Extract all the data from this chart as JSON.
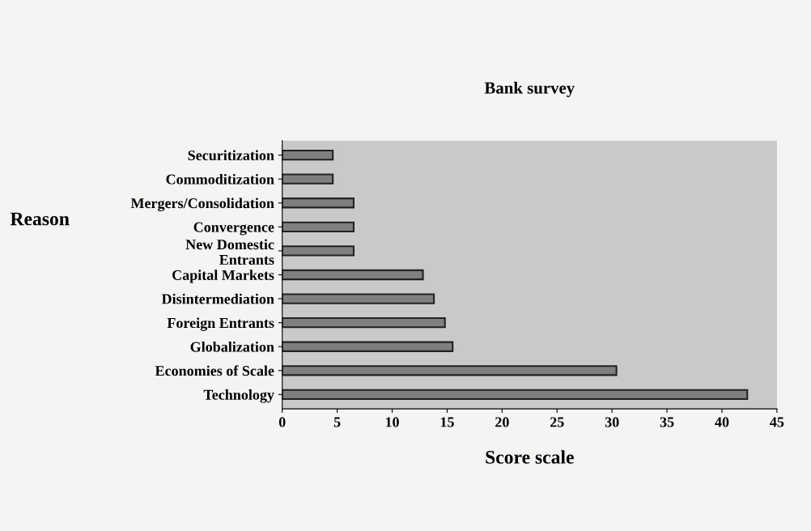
{
  "chart_data": {
    "type": "bar",
    "orientation": "horizontal",
    "title": "Bank survey",
    "xlabel": "Score scale",
    "ylabel": "Reason",
    "categories": [
      "Securitization",
      "Commoditization",
      "Mergers/Consolidation",
      "Convergence",
      "New Domestic\nEntrants",
      "Capital Markets",
      "Disintermediation",
      "Foreign Entrants",
      "Globalization",
      "Economies of Scale",
      "Technology"
    ],
    "values": [
      4.6,
      4.6,
      6.5,
      6.5,
      6.5,
      12.8,
      13.8,
      14.8,
      15.5,
      30.4,
      42.3
    ],
    "color": "#7f7f7f",
    "xlim": [
      0,
      45
    ],
    "xticks": [
      0,
      5,
      10,
      15,
      20,
      25,
      30,
      35,
      40,
      45
    ],
    "grid": false,
    "legend": false
  }
}
